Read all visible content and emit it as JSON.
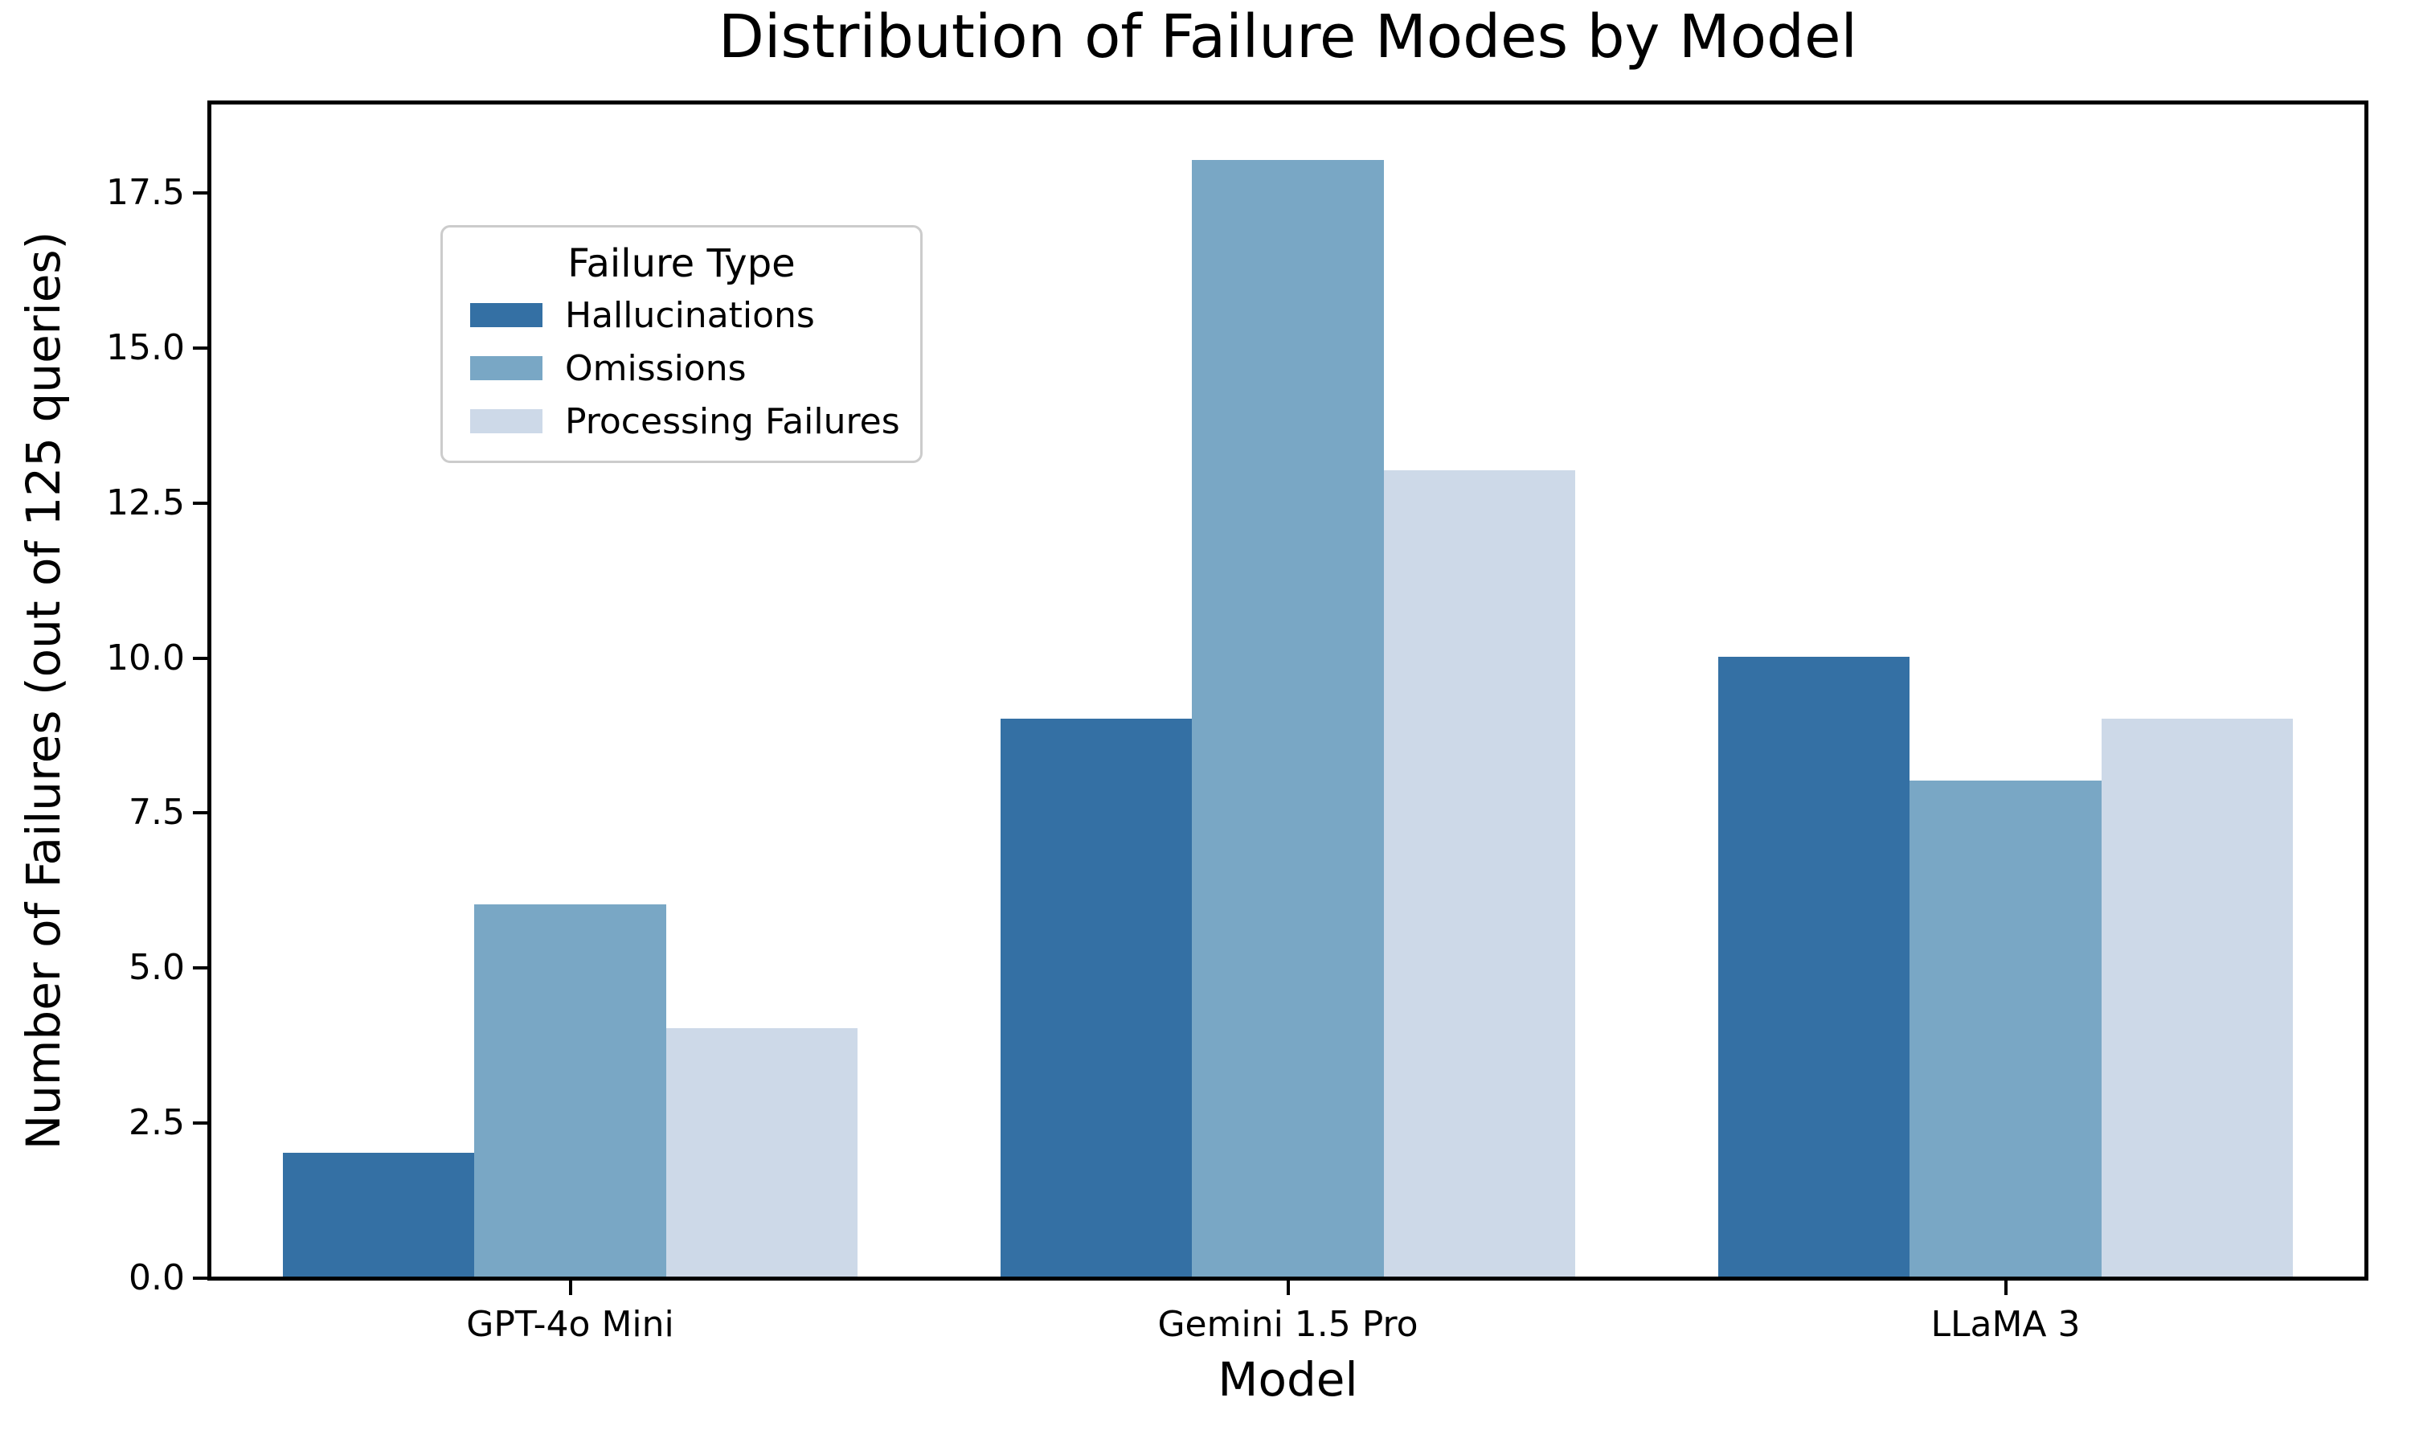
{
  "chart_data": {
    "type": "bar",
    "title": "Distribution of Failure Modes by Model",
    "xlabel": "Model",
    "ylabel": "Number of Failures (out of 125 queries)",
    "categories": [
      "GPT-4o Mini",
      "Gemini 1.5 Pro",
      "LLaMA 3"
    ],
    "series": [
      {
        "name": "Hallucinations",
        "color": "#3470a4",
        "values": [
          2,
          9,
          10
        ]
      },
      {
        "name": "Omissions",
        "color": "#79a7c5",
        "values": [
          6,
          18,
          8
        ]
      },
      {
        "name": "Processing Failures",
        "color": "#cdd9e8",
        "values": [
          4,
          13,
          9
        ]
      }
    ],
    "legend_title": "Failure Type",
    "legend_position": "upper left",
    "grid": false,
    "background": "#ffffff",
    "axis_color": "#000000",
    "legend_border_color": "#cccccc",
    "ylim": [
      0,
      18.9
    ],
    "ytick_labels": [
      "0.0",
      "2.5",
      "5.0",
      "7.5",
      "10.0",
      "12.5",
      "15.0",
      "17.5"
    ],
    "ytick_values": [
      0,
      2.5,
      5,
      7.5,
      10,
      12.5,
      15,
      17.5
    ]
  }
}
